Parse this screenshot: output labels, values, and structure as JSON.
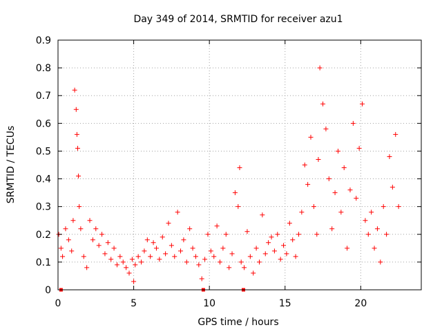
{
  "chart_data": {
    "type": "scatter",
    "title": "Day 349 of 2014, SRMTID for receiver azu1",
    "xlabel": "GPS time / hours",
    "ylabel": "SRMTID / TECUs",
    "xlim": [
      0,
      24
    ],
    "ylim": [
      0,
      0.9
    ],
    "xticks": [
      0,
      5,
      10,
      15,
      20
    ],
    "yticks": [
      0,
      0.1,
      0.2,
      0.3,
      0.4,
      0.5,
      0.6,
      0.7,
      0.8,
      0.9
    ],
    "xtick_labels": [
      "0",
      "5",
      "10",
      "15",
      "20"
    ],
    "ytick_labels": [
      "0",
      "0.1",
      "0.2",
      "0.3",
      "0.4",
      "0.5",
      "0.6",
      "0.7",
      "0.8",
      "0.9"
    ],
    "grid": true,
    "series": [
      {
        "name": "SRMTID",
        "color": "#ff0000",
        "marker": "plus",
        "x": [
          0.05,
          0.2,
          0.3,
          0.5,
          0.7,
          0.9,
          1.0,
          1.1,
          1.2,
          1.25,
          1.3,
          1.35,
          1.4,
          1.5,
          1.7,
          1.9,
          2.1,
          2.3,
          2.5,
          2.7,
          2.9,
          3.1,
          3.3,
          3.5,
          3.7,
          3.9,
          4.1,
          4.3,
          4.5,
          4.7,
          4.9,
          5.0,
          5.1,
          5.3,
          5.5,
          5.7,
          5.9,
          6.1,
          6.3,
          6.5,
          6.7,
          6.9,
          7.1,
          7.3,
          7.5,
          7.7,
          7.9,
          8.1,
          8.3,
          8.5,
          8.7,
          8.9,
          9.1,
          9.3,
          9.5,
          9.7,
          9.9,
          10.1,
          10.3,
          10.5,
          10.7,
          10.9,
          11.1,
          11.3,
          11.5,
          11.7,
          11.9,
          12.0,
          12.1,
          12.3,
          12.5,
          12.7,
          12.9,
          13.1,
          13.3,
          13.5,
          13.7,
          13.9,
          14.1,
          14.3,
          14.5,
          14.7,
          14.9,
          15.1,
          15.3,
          15.5,
          15.7,
          15.9,
          16.1,
          16.3,
          16.5,
          16.7,
          16.9,
          17.1,
          17.2,
          17.3,
          17.5,
          17.7,
          17.9,
          18.1,
          18.3,
          18.5,
          18.7,
          18.9,
          19.1,
          19.3,
          19.5,
          19.7,
          19.9,
          20.1,
          20.3,
          20.5,
          20.7,
          20.9,
          21.1,
          21.3,
          21.5,
          21.7,
          21.9,
          22.1,
          22.3,
          22.5
        ],
        "y": [
          0.2,
          0.15,
          0.12,
          0.22,
          0.18,
          0.14,
          0.25,
          0.72,
          0.65,
          0.56,
          0.51,
          0.41,
          0.3,
          0.22,
          0.12,
          0.08,
          0.25,
          0.18,
          0.22,
          0.16,
          0.2,
          0.13,
          0.17,
          0.11,
          0.15,
          0.09,
          0.12,
          0.1,
          0.08,
          0.06,
          0.11,
          0.03,
          0.09,
          0.12,
          0.1,
          0.14,
          0.18,
          0.12,
          0.17,
          0.15,
          0.11,
          0.19,
          0.13,
          0.24,
          0.16,
          0.12,
          0.28,
          0.14,
          0.18,
          0.1,
          0.22,
          0.15,
          0.12,
          0.09,
          0.04,
          0.11,
          0.2,
          0.14,
          0.12,
          0.23,
          0.1,
          0.15,
          0.2,
          0.08,
          0.13,
          0.35,
          0.3,
          0.44,
          0.1,
          0.08,
          0.21,
          0.12,
          0.06,
          0.15,
          0.1,
          0.27,
          0.13,
          0.17,
          0.19,
          0.14,
          0.2,
          0.11,
          0.16,
          0.13,
          0.24,
          0.18,
          0.12,
          0.2,
          0.28,
          0.45,
          0.38,
          0.55,
          0.3,
          0.2,
          0.47,
          0.8,
          0.67,
          0.58,
          0.4,
          0.22,
          0.35,
          0.5,
          0.28,
          0.44,
          0.15,
          0.36,
          0.6,
          0.33,
          0.51,
          0.67,
          0.25,
          0.2,
          0.28,
          0.15,
          0.22,
          0.1,
          0.3,
          0.2,
          0.48,
          0.37,
          0.56,
          0.3
        ]
      }
    ],
    "flagged_zero_x": [
      0.2,
      9.6,
      12.25
    ]
  }
}
